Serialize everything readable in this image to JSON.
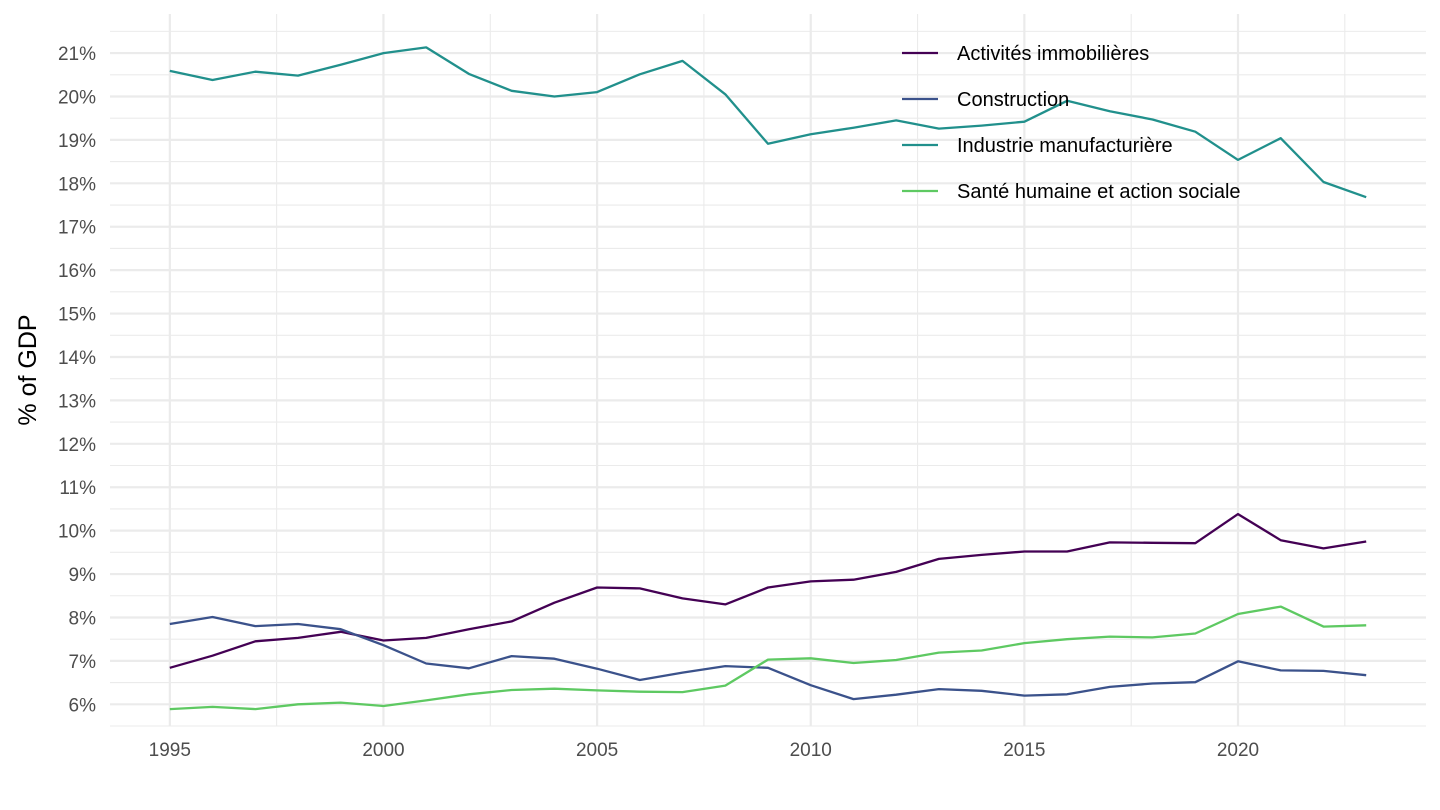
{
  "chart_data": {
    "type": "line",
    "title": "",
    "xlabel": "",
    "ylabel": "% of GDP",
    "x": [
      1995,
      1996,
      1997,
      1998,
      1999,
      2000,
      2001,
      2002,
      2003,
      2004,
      2005,
      2006,
      2007,
      2008,
      2009,
      2010,
      2011,
      2012,
      2013,
      2014,
      2015,
      2016,
      2017,
      2018,
      2019,
      2020,
      2021,
      2022,
      2023
    ],
    "xlim": [
      1993.6,
      2024.4
    ],
    "ylim": [
      5.5,
      21.9
    ],
    "x_ticks": [
      1995,
      2000,
      2005,
      2010,
      2015,
      2020
    ],
    "x_tick_labels": [
      "1995",
      "2000",
      "2005",
      "2010",
      "2015",
      "2020"
    ],
    "y_ticks": [
      6,
      7,
      8,
      9,
      10,
      11,
      12,
      13,
      14,
      15,
      16,
      17,
      18,
      19,
      20,
      21
    ],
    "y_tick_labels": [
      "6%",
      "7%",
      "8%",
      "9%",
      "10%",
      "11%",
      "12%",
      "13%",
      "14%",
      "15%",
      "16%",
      "17%",
      "18%",
      "19%",
      "20%",
      "21%"
    ],
    "grid": true,
    "legend_position": "top-right",
    "series": [
      {
        "name": "Activités immobilières",
        "color": "#440154",
        "values": [
          6.84,
          7.12,
          7.45,
          7.53,
          7.67,
          7.47,
          7.53,
          7.73,
          7.91,
          8.34,
          8.69,
          8.67,
          8.44,
          8.3,
          8.69,
          8.83,
          8.87,
          9.05,
          9.35,
          9.44,
          9.52,
          9.52,
          9.73,
          9.72,
          9.71,
          10.38,
          9.78,
          9.59,
          9.75
        ]
      },
      {
        "name": "Construction",
        "color": "#3b528b",
        "values": [
          7.85,
          8.01,
          7.8,
          7.85,
          7.73,
          7.36,
          6.94,
          6.83,
          7.11,
          7.05,
          6.82,
          6.56,
          6.73,
          6.88,
          6.84,
          6.44,
          6.12,
          6.22,
          6.35,
          6.31,
          6.2,
          6.23,
          6.4,
          6.48,
          6.51,
          6.99,
          6.78,
          6.77,
          6.67
        ]
      },
      {
        "name": "Industrie manufacturière",
        "color": "#21908c",
        "values": [
          20.59,
          20.38,
          20.57,
          20.48,
          20.73,
          21.0,
          21.13,
          20.52,
          20.13,
          20.0,
          20.1,
          20.51,
          20.82,
          20.05,
          18.91,
          19.13,
          19.28,
          19.45,
          19.26,
          19.33,
          19.42,
          19.9,
          19.66,
          19.47,
          19.19,
          18.54,
          19.04,
          18.03,
          17.68
        ]
      },
      {
        "name": "Santé humaine et action sociale",
        "color": "#5ec962",
        "values": [
          5.89,
          5.94,
          5.89,
          6.0,
          6.04,
          5.96,
          6.09,
          6.23,
          6.33,
          6.36,
          6.32,
          6.29,
          6.28,
          6.43,
          7.03,
          7.06,
          6.95,
          7.02,
          7.19,
          7.24,
          7.41,
          7.5,
          7.56,
          7.54,
          7.63,
          8.08,
          8.25,
          7.79,
          7.82
        ]
      }
    ]
  }
}
